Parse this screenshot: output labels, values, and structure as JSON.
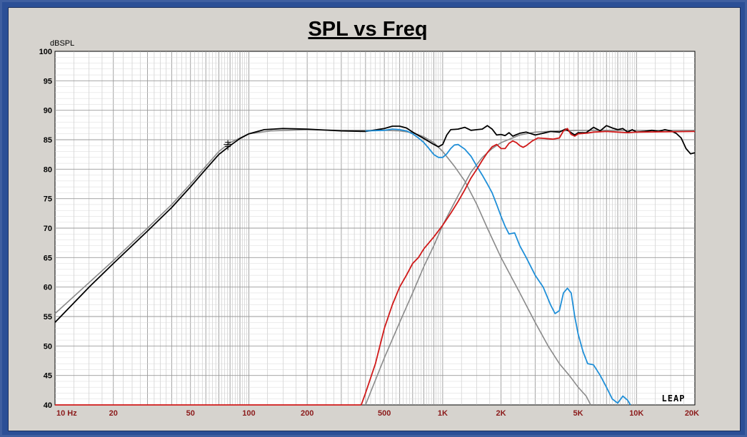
{
  "chart_data": {
    "type": "line",
    "title": "SPL vs Freq",
    "ylabel": "dBSPL",
    "xscale": "log",
    "xlim": [
      10,
      20000
    ],
    "ylim": [
      40,
      100
    ],
    "grid": true,
    "x_tick_labels": [
      {
        "v": 10,
        "label": "10  Hz"
      },
      {
        "v": 20,
        "label": "20"
      },
      {
        "v": 50,
        "label": "50"
      },
      {
        "v": 100,
        "label": "100"
      },
      {
        "v": 200,
        "label": "200"
      },
      {
        "v": 500,
        "label": "500"
      },
      {
        "v": 1000,
        "label": "1K"
      },
      {
        "v": 2000,
        "label": "2K"
      },
      {
        "v": 5000,
        "label": "5K"
      },
      {
        "v": 10000,
        "label": "10K"
      },
      {
        "v": 20000,
        "label": "20K"
      }
    ],
    "y_tick_labels": [
      "40",
      "45",
      "50",
      "55",
      "60",
      "65",
      "70",
      "75",
      "80",
      "85",
      "90",
      "95",
      "100"
    ],
    "watermark": "LEAP",
    "colors": {
      "total": "#000000",
      "woofer": "#1f8fd8",
      "tweeter": "#d01818",
      "target": "#8a8a8a",
      "axis_labels": "#8b1a1a",
      "grid": "#b8b8b8"
    },
    "series": [
      {
        "color_key": "target",
        "points": [
          [
            10,
            55.5
          ],
          [
            20,
            64.5
          ],
          [
            30,
            70
          ],
          [
            40,
            74
          ],
          [
            50,
            77.5
          ],
          [
            60,
            80.5
          ],
          [
            70,
            83
          ],
          [
            80,
            84.5
          ],
          [
            100,
            86
          ],
          [
            130,
            86.5
          ],
          [
            200,
            86.7
          ],
          [
            300,
            86.6
          ],
          [
            400,
            86.6
          ],
          [
            500,
            86.6
          ],
          [
            600,
            86.5
          ],
          [
            700,
            86.2
          ],
          [
            800,
            85.5
          ],
          [
            900,
            84.5
          ],
          [
            1000,
            83
          ],
          [
            1150,
            80.5
          ],
          [
            1300,
            78
          ],
          [
            1500,
            74
          ],
          [
            1700,
            70
          ],
          [
            2000,
            65
          ],
          [
            2500,
            59
          ],
          [
            3000,
            54
          ],
          [
            3500,
            50
          ],
          [
            4000,
            47
          ],
          [
            4500,
            45
          ],
          [
            5000,
            43
          ],
          [
            5500,
            41.5
          ],
          [
            5800,
            40
          ]
        ]
      },
      {
        "color_key": "target",
        "points": [
          [
            400,
            40
          ],
          [
            500,
            48
          ],
          [
            600,
            54
          ],
          [
            700,
            59
          ],
          [
            800,
            63.5
          ],
          [
            900,
            67
          ],
          [
            1000,
            70.5
          ],
          [
            1200,
            75.5
          ],
          [
            1400,
            79.5
          ],
          [
            1600,
            82
          ],
          [
            1800,
            83.5
          ],
          [
            2000,
            84.5
          ],
          [
            2500,
            85.8
          ],
          [
            3000,
            86.3
          ],
          [
            4000,
            86.5
          ],
          [
            5000,
            86.6
          ],
          [
            10000,
            86.6
          ],
          [
            20000,
            86.6
          ]
        ]
      },
      {
        "color_key": "total",
        "points": [
          [
            10,
            54
          ],
          [
            15,
            60
          ],
          [
            20,
            64
          ],
          [
            30,
            69.5
          ],
          [
            40,
            73.5
          ],
          [
            50,
            77
          ],
          [
            60,
            80
          ],
          [
            70,
            82.5
          ],
          [
            80,
            84
          ],
          [
            90,
            85.2
          ],
          [
            100,
            86
          ],
          [
            120,
            86.7
          ],
          [
            150,
            86.9
          ],
          [
            200,
            86.8
          ],
          [
            300,
            86.5
          ],
          [
            400,
            86.4
          ],
          [
            500,
            86.9
          ],
          [
            550,
            87.3
          ],
          [
            600,
            87.3
          ],
          [
            650,
            87
          ],
          [
            700,
            86.3
          ],
          [
            800,
            85.2
          ],
          [
            900,
            84.2
          ],
          [
            950,
            83.8
          ],
          [
            1000,
            84.2
          ],
          [
            1050,
            85.8
          ],
          [
            1100,
            86.7
          ],
          [
            1200,
            86.8
          ],
          [
            1300,
            87.1
          ],
          [
            1400,
            86.6
          ],
          [
            1500,
            86.7
          ],
          [
            1600,
            86.8
          ],
          [
            1700,
            87.4
          ],
          [
            1800,
            86.8
          ],
          [
            1900,
            85.8
          ],
          [
            2000,
            85.9
          ],
          [
            2100,
            85.7
          ],
          [
            2200,
            86.2
          ],
          [
            2300,
            85.6
          ],
          [
            2500,
            86.1
          ],
          [
            2700,
            86.3
          ],
          [
            3000,
            85.8
          ],
          [
            3300,
            86.1
          ],
          [
            3600,
            86.4
          ],
          [
            4000,
            86.3
          ],
          [
            4300,
            86.8
          ],
          [
            4500,
            86.4
          ],
          [
            4800,
            85.8
          ],
          [
            5000,
            86.2
          ],
          [
            5500,
            86.2
          ],
          [
            6000,
            87.1
          ],
          [
            6500,
            86.5
          ],
          [
            7000,
            87.4
          ],
          [
            7500,
            87
          ],
          [
            8000,
            86.7
          ],
          [
            8500,
            86.9
          ],
          [
            9000,
            86.3
          ],
          [
            9500,
            86.7
          ],
          [
            10000,
            86.3
          ],
          [
            11000,
            86.4
          ],
          [
            12000,
            86.6
          ],
          [
            13000,
            86.4
          ],
          [
            14000,
            86.7
          ],
          [
            15000,
            86.5
          ],
          [
            16000,
            86.1
          ],
          [
            17000,
            85.3
          ],
          [
            18000,
            83.5
          ],
          [
            19000,
            82.6
          ],
          [
            20000,
            82.8
          ]
        ]
      },
      {
        "color_key": "woofer",
        "points": [
          [
            400,
            86.5
          ],
          [
            500,
            86.6
          ],
          [
            550,
            86.8
          ],
          [
            600,
            86.7
          ],
          [
            650,
            86.5
          ],
          [
            700,
            86
          ],
          [
            750,
            85.3
          ],
          [
            800,
            84.5
          ],
          [
            850,
            83.5
          ],
          [
            900,
            82.5
          ],
          [
            950,
            82
          ],
          [
            1000,
            82
          ],
          [
            1050,
            82.6
          ],
          [
            1100,
            83.5
          ],
          [
            1150,
            84.1
          ],
          [
            1200,
            84.2
          ],
          [
            1300,
            83.4
          ],
          [
            1400,
            82.2
          ],
          [
            1500,
            80.5
          ],
          [
            1600,
            79
          ],
          [
            1700,
            77.5
          ],
          [
            1800,
            76
          ],
          [
            1900,
            74
          ],
          [
            2000,
            72
          ],
          [
            2100,
            70.3
          ],
          [
            2200,
            69
          ],
          [
            2350,
            69.2
          ],
          [
            2500,
            67
          ],
          [
            2700,
            65
          ],
          [
            3000,
            62
          ],
          [
            3300,
            60
          ],
          [
            3600,
            57
          ],
          [
            3800,
            55.5
          ],
          [
            4000,
            56
          ],
          [
            4200,
            59
          ],
          [
            4400,
            59.8
          ],
          [
            4600,
            59
          ],
          [
            4800,
            55
          ],
          [
            5000,
            52
          ],
          [
            5300,
            49
          ],
          [
            5600,
            47
          ],
          [
            6000,
            46.8
          ],
          [
            6500,
            45
          ],
          [
            7000,
            43
          ],
          [
            7500,
            41
          ],
          [
            8000,
            40.3
          ],
          [
            8500,
            41.5
          ],
          [
            9000,
            40.8
          ],
          [
            9300,
            40
          ]
        ]
      },
      {
        "color_key": "tweeter",
        "points": [
          [
            380,
            40
          ],
          [
            400,
            42
          ],
          [
            450,
            47
          ],
          [
            500,
            53
          ],
          [
            550,
            57
          ],
          [
            600,
            60
          ],
          [
            650,
            62
          ],
          [
            700,
            64
          ],
          [
            750,
            65
          ],
          [
            800,
            66.5
          ],
          [
            900,
            68.5
          ],
          [
            1000,
            70.5
          ],
          [
            1100,
            72.5
          ],
          [
            1200,
            74.5
          ],
          [
            1300,
            76.5
          ],
          [
            1400,
            78.5
          ],
          [
            1500,
            80
          ],
          [
            1600,
            81.5
          ],
          [
            1700,
            82.8
          ],
          [
            1800,
            83.8
          ],
          [
            1900,
            84.2
          ],
          [
            2000,
            83.5
          ],
          [
            2100,
            83.5
          ],
          [
            2200,
            84.4
          ],
          [
            2300,
            84.8
          ],
          [
            2400,
            84.5
          ],
          [
            2500,
            84
          ],
          [
            2600,
            83.7
          ],
          [
            2700,
            84
          ],
          [
            2900,
            84.8
          ],
          [
            3100,
            85.3
          ],
          [
            3400,
            85.2
          ],
          [
            3700,
            85.1
          ],
          [
            4000,
            85.3
          ],
          [
            4200,
            86.5
          ],
          [
            4400,
            86.9
          ],
          [
            4600,
            85.9
          ],
          [
            4800,
            85.6
          ],
          [
            5000,
            86
          ],
          [
            5500,
            86.1
          ],
          [
            6000,
            86.3
          ],
          [
            7000,
            86.4
          ],
          [
            8000,
            86.3
          ],
          [
            9000,
            86.2
          ],
          [
            10000,
            86.3
          ],
          [
            20000,
            86.4
          ]
        ]
      }
    ]
  }
}
